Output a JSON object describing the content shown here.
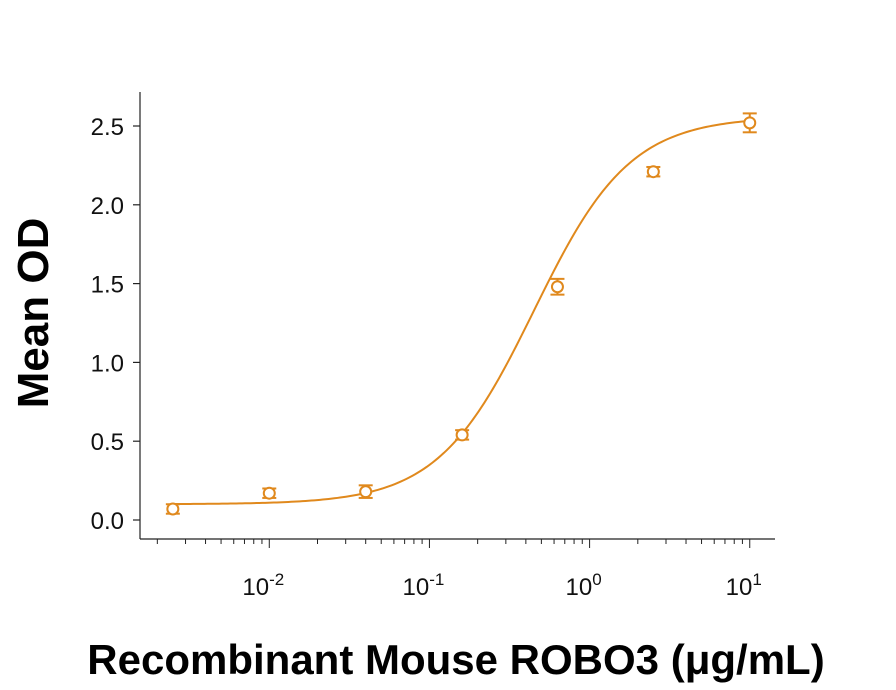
{
  "chart_data": {
    "type": "scatter",
    "ylabel": "Mean OD",
    "xlabel": "Recombinant Mouse ROBO3 (μg/mL)",
    "x_scale": "log",
    "xlim": [
      0.0018,
      13
    ],
    "ylim": [
      -0.1,
      2.7
    ],
    "x_ticks": [
      {
        "value": 0.01,
        "base": "10",
        "exp": "-2"
      },
      {
        "value": 0.1,
        "base": "10",
        "exp": "-1"
      },
      {
        "value": 1,
        "base": "10",
        "exp": "0"
      },
      {
        "value": 10,
        "base": "10",
        "exp": "1"
      }
    ],
    "y_ticks": [
      {
        "value": 0.0,
        "label": "0.0"
      },
      {
        "value": 0.5,
        "label": "0.5"
      },
      {
        "value": 1.0,
        "label": "1.0"
      },
      {
        "value": 1.5,
        "label": "1.5"
      },
      {
        "value": 2.0,
        "label": "2.0"
      },
      {
        "value": 2.5,
        "label": "2.5"
      }
    ],
    "grid": false,
    "color": "#E0891D",
    "points": [
      {
        "x": 0.0025,
        "y": 0.07,
        "err": 0.03
      },
      {
        "x": 0.01,
        "y": 0.17,
        "err": 0.03
      },
      {
        "x": 0.04,
        "y": 0.18,
        "err": 0.04
      },
      {
        "x": 0.16,
        "y": 0.54,
        "err": 0.03
      },
      {
        "x": 0.63,
        "y": 1.48,
        "err": 0.05
      },
      {
        "x": 2.5,
        "y": 2.21,
        "err": 0.03
      },
      {
        "x": 10,
        "y": 2.52,
        "err": 0.06
      }
    ],
    "fit": {
      "bottom": 0.1,
      "top": 2.56,
      "ec50": 0.45,
      "hill": 1.45
    }
  }
}
